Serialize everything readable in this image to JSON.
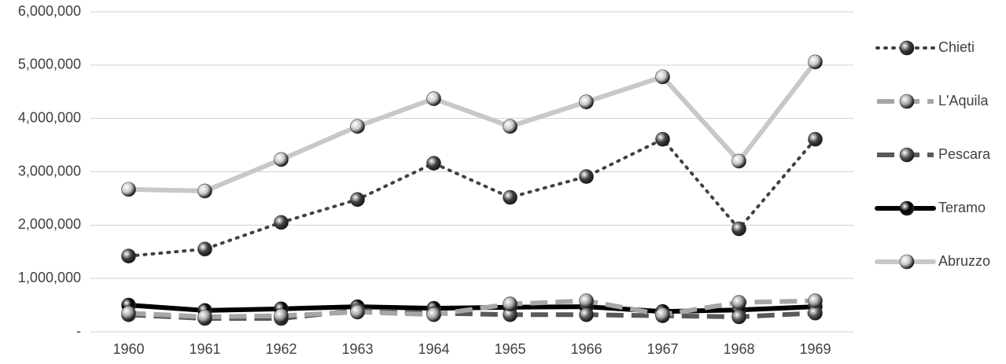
{
  "chart_data": {
    "type": "line",
    "categories": [
      "1960",
      "1961",
      "1962",
      "1963",
      "1964",
      "1965",
      "1966",
      "1967",
      "1968",
      "1969"
    ],
    "series": [
      {
        "name": "Chieti",
        "color": "#404040",
        "line_style": "dotted",
        "values": [
          1420000,
          1550000,
          2050000,
          2480000,
          3160000,
          2520000,
          2910000,
          3610000,
          1930000,
          3610000
        ]
      },
      {
        "name": "L'Aquila",
        "color": "#a6a6a6",
        "line_style": "dashed",
        "values": [
          350000,
          280000,
          300000,
          370000,
          320000,
          520000,
          580000,
          320000,
          550000,
          580000
        ]
      },
      {
        "name": "Pescara",
        "color": "#595959",
        "line_style": "dashed",
        "values": [
          320000,
          250000,
          250000,
          400000,
          350000,
          320000,
          320000,
          300000,
          280000,
          350000
        ]
      },
      {
        "name": "Teramo",
        "color": "#000000",
        "line_style": "solid",
        "values": [
          500000,
          400000,
          430000,
          470000,
          440000,
          460000,
          470000,
          380000,
          410000,
          470000
        ]
      },
      {
        "name": "Abruzzo",
        "color": "#c8c8c8",
        "line_style": "solid",
        "values": [
          2670000,
          2640000,
          3230000,
          3850000,
          4370000,
          3850000,
          4310000,
          4780000,
          3200000,
          5060000
        ]
      }
    ],
    "ylim": [
      0,
      6000000
    ],
    "yticks": [
      {
        "value": 0,
        "label": "-"
      },
      {
        "value": 1000000,
        "label": "1,000,000"
      },
      {
        "value": 2000000,
        "label": "2,000,000"
      },
      {
        "value": 3000000,
        "label": "3,000,000"
      },
      {
        "value": 4000000,
        "label": "4,000,000"
      },
      {
        "value": 5000000,
        "label": "5,000,000"
      },
      {
        "value": 6000000,
        "label": "6,000,000"
      }
    ],
    "grid": true,
    "legend": "right"
  }
}
